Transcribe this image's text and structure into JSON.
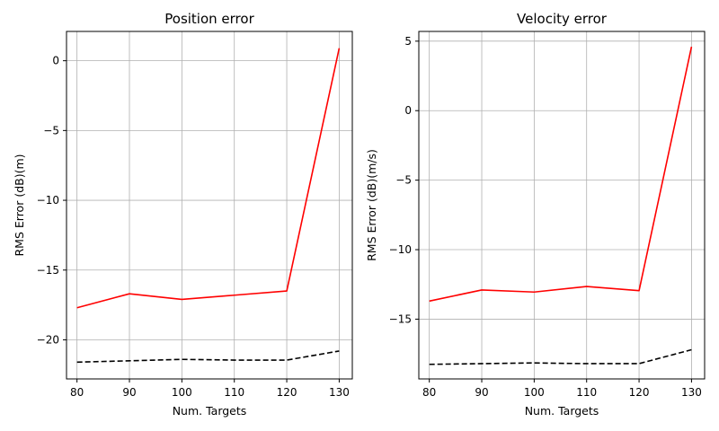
{
  "figure": {
    "background": "#ffffff"
  },
  "chart_data": [
    {
      "type": "line",
      "title": "Position error",
      "xlabel": "Num. Targets",
      "ylabel": "RMS Error (dB)(m)",
      "x": [
        80,
        90,
        100,
        110,
        120,
        130
      ],
      "xlim": [
        78,
        132.5
      ],
      "ylim": [
        -22.8,
        2.1
      ],
      "xticks": [
        80,
        90,
        100,
        110,
        120,
        130
      ],
      "yticks": [
        0,
        -5,
        -10,
        -15,
        -20
      ],
      "grid": true,
      "series": [
        {
          "color": "#ff0000",
          "dash": "solid",
          "values": [
            -17.7,
            -16.7,
            -17.1,
            -16.8,
            -16.5,
            0.9
          ]
        },
        {
          "color": "#000000",
          "dash": "dashed",
          "values": [
            -21.6,
            -21.5,
            -21.4,
            -21.45,
            -21.45,
            -20.8
          ]
        }
      ]
    },
    {
      "type": "line",
      "title": "Velocity error",
      "xlabel": "Num. Targets",
      "ylabel": "RMS Error (dB)(m/s)",
      "x": [
        80,
        90,
        100,
        110,
        120,
        130
      ],
      "xlim": [
        78,
        132.5
      ],
      "ylim": [
        -19.3,
        5.7
      ],
      "xticks": [
        80,
        90,
        100,
        110,
        120,
        130
      ],
      "yticks": [
        5,
        0,
        -5,
        -10,
        -15
      ],
      "grid": true,
      "series": [
        {
          "color": "#ff0000",
          "dash": "solid",
          "values": [
            -13.7,
            -12.9,
            -13.05,
            -12.65,
            -12.95,
            4.6
          ]
        },
        {
          "color": "#000000",
          "dash": "dashed",
          "values": [
            -18.25,
            -18.2,
            -18.15,
            -18.2,
            -18.2,
            -17.2
          ]
        }
      ]
    }
  ]
}
